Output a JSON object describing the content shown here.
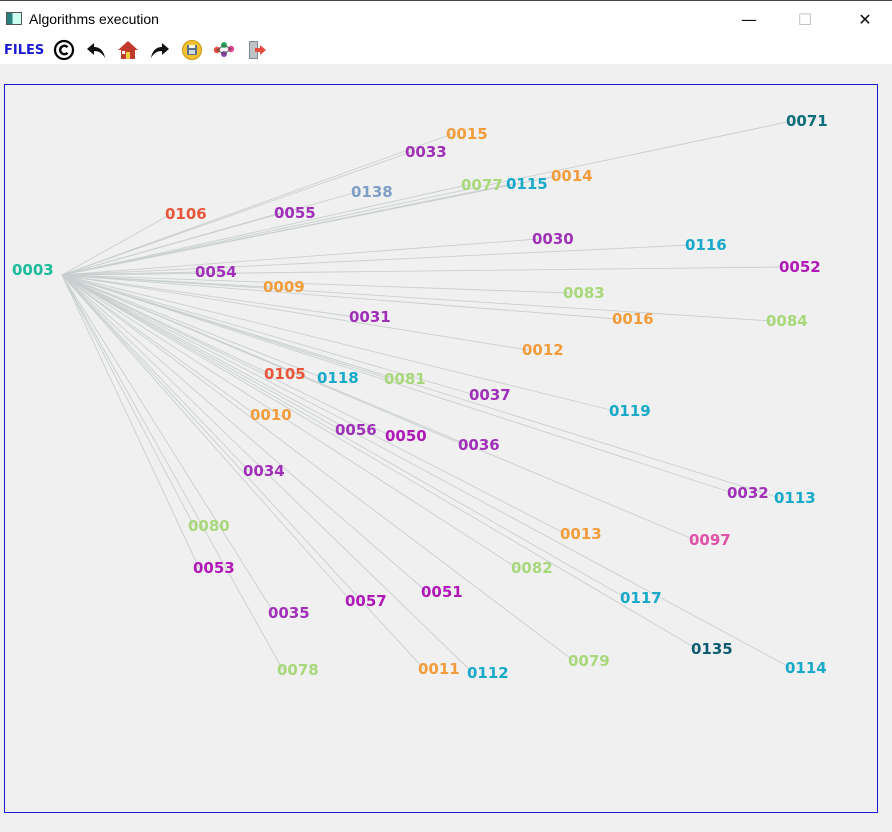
{
  "window": {
    "title": "Algorithms execution",
    "minimize_glyph": "—",
    "maximize_glyph": "☐",
    "close_glyph": "✕"
  },
  "toolbar": {
    "files_label": "FILES",
    "icons": [
      "copyright-icon",
      "undo-icon",
      "home-icon",
      "redo-icon",
      "save-icon",
      "graph-icon",
      "exit-icon"
    ]
  },
  "graph": {
    "root": {
      "label": "0003",
      "color": "#1abc9c"
    },
    "nodes": [
      {
        "label": "0071",
        "color": "#0e6e7a"
      },
      {
        "label": "0015",
        "color": "#f39c3c"
      },
      {
        "label": "0033",
        "color": "#a030b8"
      },
      {
        "label": "0014",
        "color": "#f39c3c"
      },
      {
        "label": "0077",
        "color": "#a8d87a"
      },
      {
        "label": "0115",
        "color": "#17a9c9"
      },
      {
        "label": "0138",
        "color": "#7f9fc8"
      },
      {
        "label": "0106",
        "color": "#e8563a"
      },
      {
        "label": "0055",
        "color": "#a030b8"
      },
      {
        "label": "0030",
        "color": "#a030b8"
      },
      {
        "label": "0116",
        "color": "#17a9c9"
      },
      {
        "label": "0052",
        "color": "#b018b8"
      },
      {
        "label": "0054",
        "color": "#a030b8"
      },
      {
        "label": "0009",
        "color": "#f39c3c"
      },
      {
        "label": "0083",
        "color": "#a8d87a"
      },
      {
        "label": "0016",
        "color": "#f39c3c"
      },
      {
        "label": "0084",
        "color": "#a8d87a"
      },
      {
        "label": "0031",
        "color": "#a030b8"
      },
      {
        "label": "0012",
        "color": "#f39c3c"
      },
      {
        "label": "0105",
        "color": "#e8563a"
      },
      {
        "label": "0118",
        "color": "#17a9c9"
      },
      {
        "label": "0081",
        "color": "#a8d87a"
      },
      {
        "label": "0037",
        "color": "#a030b8"
      },
      {
        "label": "0119",
        "color": "#17a9c9"
      },
      {
        "label": "0010",
        "color": "#f39c3c"
      },
      {
        "label": "0056",
        "color": "#a030b8"
      },
      {
        "label": "0050",
        "color": "#b018b8"
      },
      {
        "label": "0036",
        "color": "#a030b8"
      },
      {
        "label": "0034",
        "color": "#a030b8"
      },
      {
        "label": "0032",
        "color": "#a030b8"
      },
      {
        "label": "0113",
        "color": "#17a9c9"
      },
      {
        "label": "0080",
        "color": "#a8d87a"
      },
      {
        "label": "0013",
        "color": "#f39c3c"
      },
      {
        "label": "0097",
        "color": "#e04fa8"
      },
      {
        "label": "0053",
        "color": "#b018b8"
      },
      {
        "label": "0082",
        "color": "#a8d87a"
      },
      {
        "label": "0051",
        "color": "#b018b8"
      },
      {
        "label": "0117",
        "color": "#17a9c9"
      },
      {
        "label": "0035",
        "color": "#a030b8"
      },
      {
        "label": "0057",
        "color": "#b018b8"
      },
      {
        "label": "0135",
        "color": "#0e5a70"
      },
      {
        "label": "0079",
        "color": "#a8d87a"
      },
      {
        "label": "0078",
        "color": "#a8d87a"
      },
      {
        "label": "0011",
        "color": "#f39c3c"
      },
      {
        "label": "0112",
        "color": "#17a9c9"
      },
      {
        "label": "0114",
        "color": "#17a9c9"
      }
    ],
    "edge_color": "#c9cfcf",
    "frame_color": "#1a1ad0"
  }
}
